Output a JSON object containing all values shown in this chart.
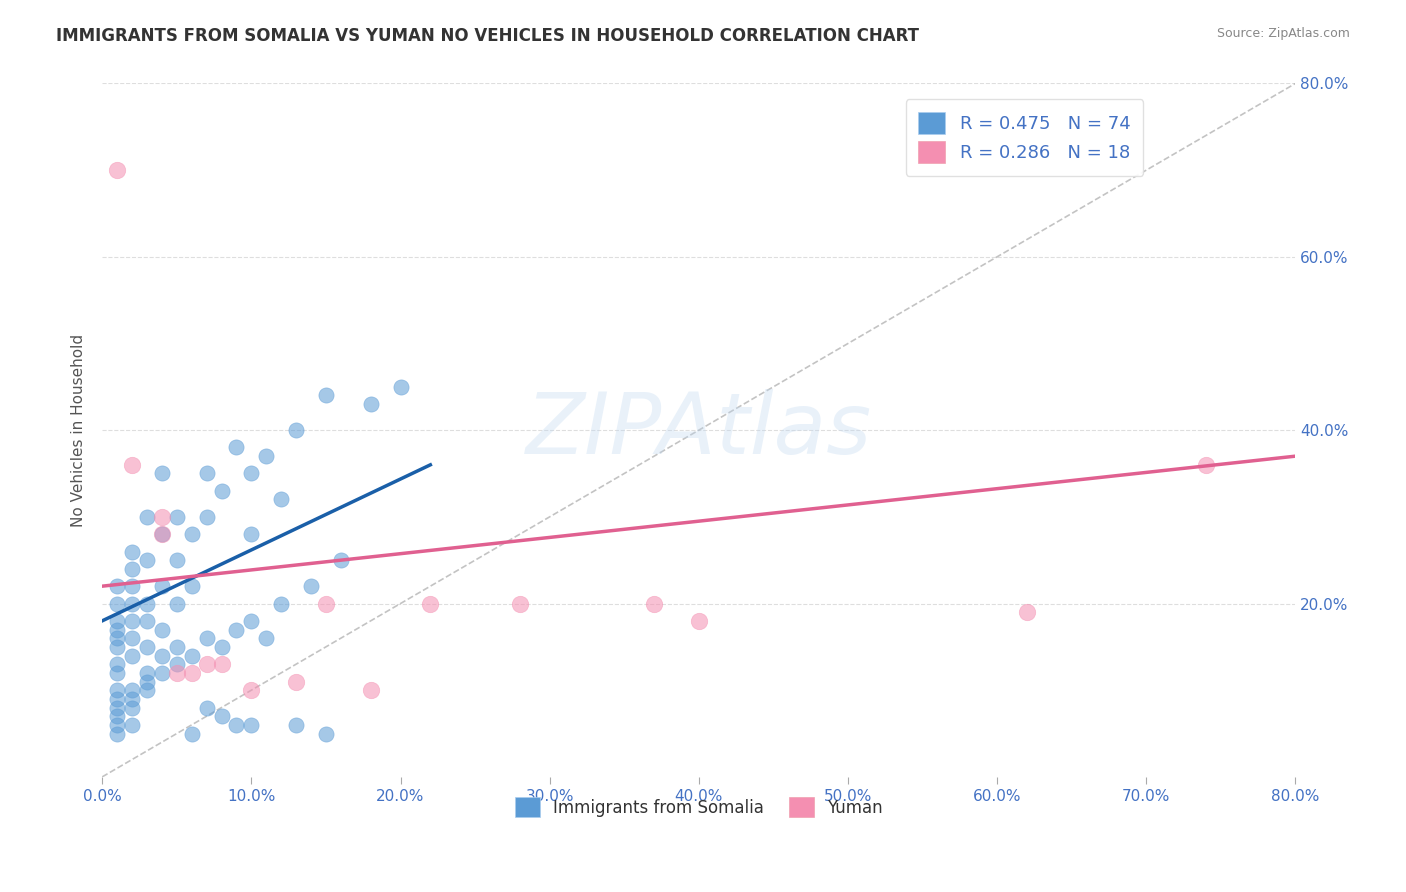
{
  "title": "IMMIGRANTS FROM SOMALIA VS YUMAN NO VEHICLES IN HOUSEHOLD CORRELATION CHART",
  "source_text": "Source: ZipAtlas.com",
  "ylabel": "No Vehicles in Household",
  "xlabel": "",
  "xlim": [
    0.0,
    0.8
  ],
  "ylim": [
    0.0,
    0.8
  ],
  "xtick_labels": [
    "0.0%",
    "10.0%",
    "20.0%",
    "30.0%",
    "40.0%",
    "50.0%",
    "60.0%",
    "70.0%",
    "80.0%"
  ],
  "xtick_vals": [
    0.0,
    0.1,
    0.2,
    0.3,
    0.4,
    0.5,
    0.6,
    0.7,
    0.8
  ],
  "ytick_labels": [
    "20.0%",
    "40.0%",
    "60.0%",
    "80.0%"
  ],
  "ytick_vals": [
    0.2,
    0.4,
    0.6,
    0.8
  ],
  "legend_entries": [
    {
      "label": "R = 0.475   N = 74",
      "color": "#a8c4e0"
    },
    {
      "label": "R = 0.286   N = 18",
      "color": "#f4a8b8"
    }
  ],
  "legend_bottom_entries": [
    {
      "label": "Immigrants from Somalia",
      "color": "#a8c4e0"
    },
    {
      "label": "Yuman",
      "color": "#f4a8b8"
    }
  ],
  "somalia_scatter": [
    [
      0.01,
      0.1
    ],
    [
      0.01,
      0.12
    ],
    [
      0.01,
      0.13
    ],
    [
      0.01,
      0.15
    ],
    [
      0.01,
      0.16
    ],
    [
      0.01,
      0.17
    ],
    [
      0.01,
      0.18
    ],
    [
      0.01,
      0.2
    ],
    [
      0.01,
      0.22
    ],
    [
      0.01,
      0.08
    ],
    [
      0.01,
      0.09
    ],
    [
      0.02,
      0.14
    ],
    [
      0.02,
      0.16
    ],
    [
      0.02,
      0.18
    ],
    [
      0.02,
      0.2
    ],
    [
      0.02,
      0.22
    ],
    [
      0.02,
      0.24
    ],
    [
      0.02,
      0.26
    ],
    [
      0.02,
      0.1
    ],
    [
      0.03,
      0.15
    ],
    [
      0.03,
      0.18
    ],
    [
      0.03,
      0.2
    ],
    [
      0.03,
      0.25
    ],
    [
      0.03,
      0.3
    ],
    [
      0.03,
      0.12
    ],
    [
      0.04,
      0.17
    ],
    [
      0.04,
      0.22
    ],
    [
      0.04,
      0.28
    ],
    [
      0.04,
      0.35
    ],
    [
      0.05,
      0.2
    ],
    [
      0.05,
      0.25
    ],
    [
      0.05,
      0.3
    ],
    [
      0.06,
      0.22
    ],
    [
      0.06,
      0.28
    ],
    [
      0.07,
      0.3
    ],
    [
      0.07,
      0.35
    ],
    [
      0.08,
      0.33
    ],
    [
      0.09,
      0.38
    ],
    [
      0.1,
      0.35
    ],
    [
      0.1,
      0.28
    ],
    [
      0.11,
      0.37
    ],
    [
      0.12,
      0.32
    ],
    [
      0.13,
      0.4
    ],
    [
      0.15,
      0.44
    ],
    [
      0.18,
      0.43
    ],
    [
      0.2,
      0.45
    ],
    [
      0.01,
      0.05
    ],
    [
      0.01,
      0.06
    ],
    [
      0.01,
      0.07
    ],
    [
      0.02,
      0.06
    ],
    [
      0.02,
      0.08
    ],
    [
      0.02,
      0.09
    ],
    [
      0.03,
      0.1
    ],
    [
      0.03,
      0.11
    ],
    [
      0.04,
      0.12
    ],
    [
      0.04,
      0.14
    ],
    [
      0.05,
      0.13
    ],
    [
      0.05,
      0.15
    ],
    [
      0.06,
      0.14
    ],
    [
      0.07,
      0.16
    ],
    [
      0.08,
      0.15
    ],
    [
      0.09,
      0.17
    ],
    [
      0.1,
      0.18
    ],
    [
      0.11,
      0.16
    ],
    [
      0.12,
      0.2
    ],
    [
      0.14,
      0.22
    ],
    [
      0.16,
      0.25
    ],
    [
      0.06,
      0.05
    ],
    [
      0.07,
      0.08
    ],
    [
      0.08,
      0.07
    ],
    [
      0.09,
      0.06
    ],
    [
      0.1,
      0.06
    ],
    [
      0.13,
      0.06
    ],
    [
      0.15,
      0.05
    ]
  ],
  "yuman_scatter": [
    [
      0.01,
      0.7
    ],
    [
      0.02,
      0.36
    ],
    [
      0.04,
      0.3
    ],
    [
      0.04,
      0.28
    ],
    [
      0.05,
      0.12
    ],
    [
      0.06,
      0.12
    ],
    [
      0.07,
      0.13
    ],
    [
      0.08,
      0.13
    ],
    [
      0.1,
      0.1
    ],
    [
      0.13,
      0.11
    ],
    [
      0.15,
      0.2
    ],
    [
      0.18,
      0.1
    ],
    [
      0.22,
      0.2
    ],
    [
      0.28,
      0.2
    ],
    [
      0.37,
      0.2
    ],
    [
      0.4,
      0.18
    ],
    [
      0.62,
      0.19
    ],
    [
      0.74,
      0.36
    ]
  ],
  "somalia_trendline": {
    "x": [
      0.0,
      0.22
    ],
    "y": [
      0.18,
      0.36
    ]
  },
  "yuman_trendline": {
    "x": [
      0.0,
      0.8
    ],
    "y": [
      0.22,
      0.37
    ]
  },
  "dashed_line": {
    "x": [
      0.0,
      0.8
    ],
    "y": [
      0.0,
      0.8
    ]
  },
  "somalia_color": "#5b9bd5",
  "yuman_color": "#f48fb1",
  "somalia_trend_color": "#1a5fa8",
  "yuman_trend_color": "#e06090",
  "watermark_text": "ZIPAtlas",
  "watermark_color": "#c0d8f0",
  "title_color": "#333333",
  "axis_label_color": "#555555",
  "tick_color": "#4472c4",
  "grid_color": "#d0d0d0",
  "legend_r_color": "#4472c4",
  "legend_n_color": "#4472c4"
}
